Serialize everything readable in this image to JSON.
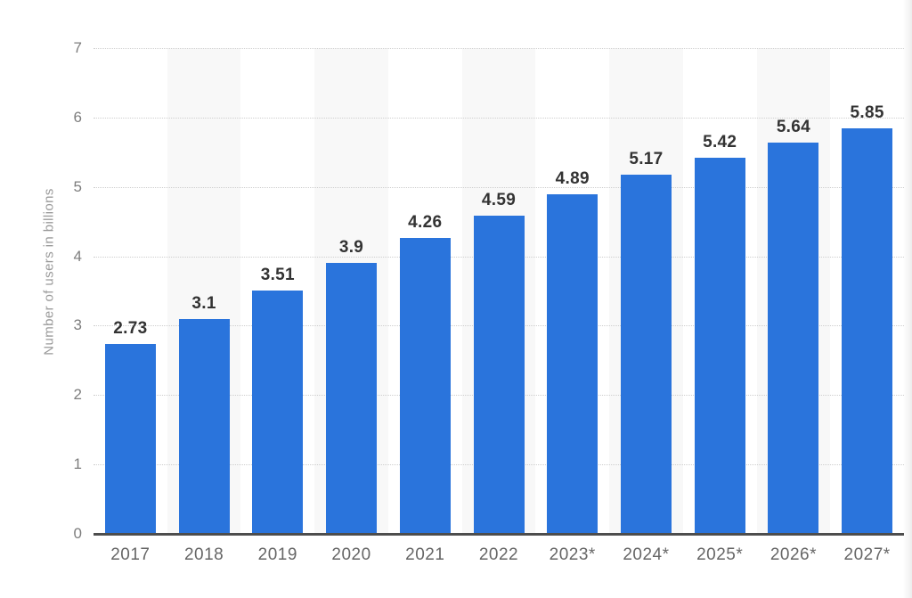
{
  "chart_data": {
    "type": "bar",
    "title": "",
    "categories": [
      "2017",
      "2018",
      "2019",
      "2020",
      "2021",
      "2022",
      "2023*",
      "2024*",
      "2025*",
      "2026*",
      "2027*"
    ],
    "values": [
      2.73,
      3.1,
      3.51,
      3.9,
      4.26,
      4.59,
      4.89,
      5.17,
      5.42,
      5.64,
      5.85
    ],
    "value_labels": [
      "2.73",
      "3.1",
      "3.51",
      "3.9",
      "4.26",
      "4.59",
      "4.89",
      "5.17",
      "5.42",
      "5.64",
      "5.85"
    ],
    "xlabel": "",
    "ylabel": "Number of users in billions",
    "ylim": [
      0,
      7
    ],
    "yticks": [
      0,
      1,
      2,
      3,
      4,
      5,
      6,
      7
    ],
    "grid": "horizontal-dotted",
    "legend": "none",
    "banded_columns": [
      1,
      3,
      5,
      7,
      9
    ],
    "colors": {
      "bar": "#2a74dc",
      "band": "#f8f8f8",
      "gridline": "#cecece",
      "axis_line": "#4d4d4d",
      "value_label": "#333333",
      "x_tick": "#666666",
      "y_tick": "#7d7d7d",
      "y_title": "#9a9a9a",
      "background": "#ffffff"
    }
  }
}
